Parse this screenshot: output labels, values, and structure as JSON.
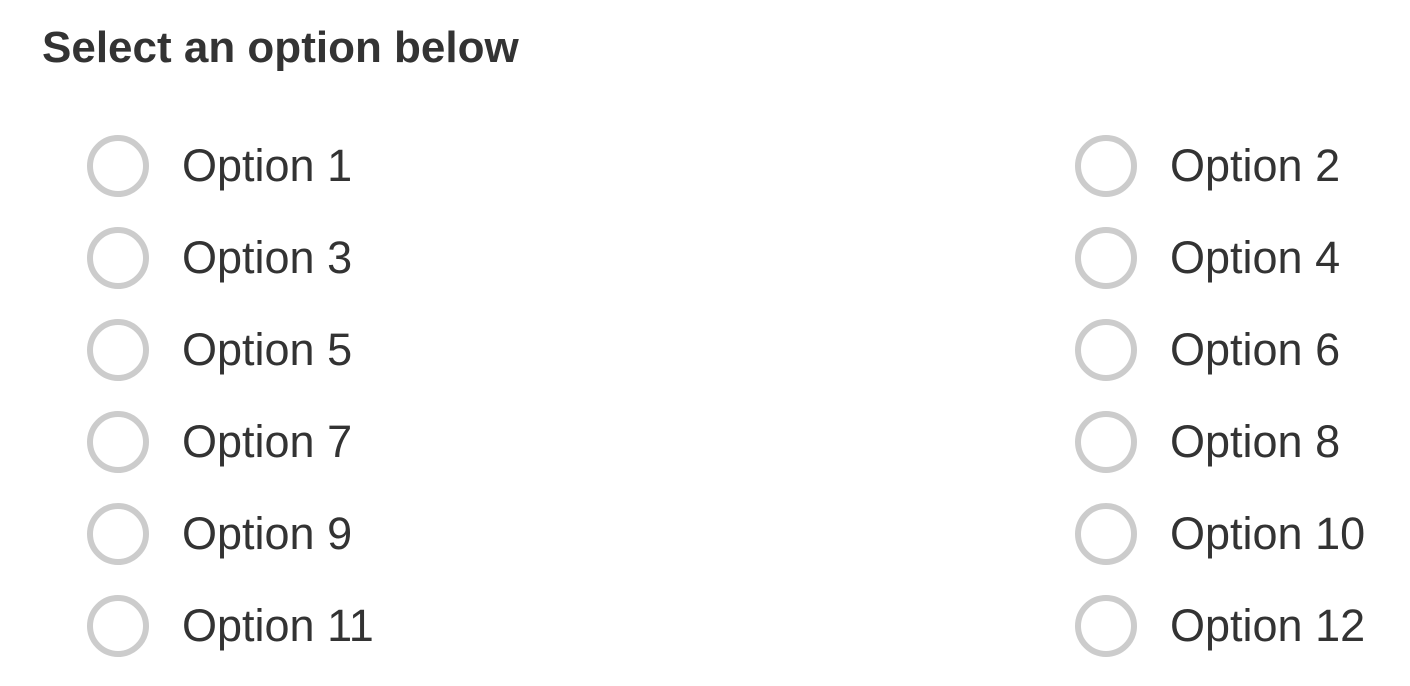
{
  "title": "Select an option below",
  "colors": {
    "radio_border": "#cccccc",
    "text": "#333333"
  },
  "options": [
    {
      "label": "Option 1",
      "selected": false
    },
    {
      "label": "Option 2",
      "selected": false
    },
    {
      "label": "Option 3",
      "selected": false
    },
    {
      "label": "Option 4",
      "selected": false
    },
    {
      "label": "Option 5",
      "selected": false
    },
    {
      "label": "Option 6",
      "selected": false
    },
    {
      "label": "Option 7",
      "selected": false
    },
    {
      "label": "Option 8",
      "selected": false
    },
    {
      "label": "Option 9",
      "selected": false
    },
    {
      "label": "Option 10",
      "selected": false
    },
    {
      "label": "Option 11",
      "selected": false
    },
    {
      "label": "Option 12",
      "selected": false
    }
  ]
}
